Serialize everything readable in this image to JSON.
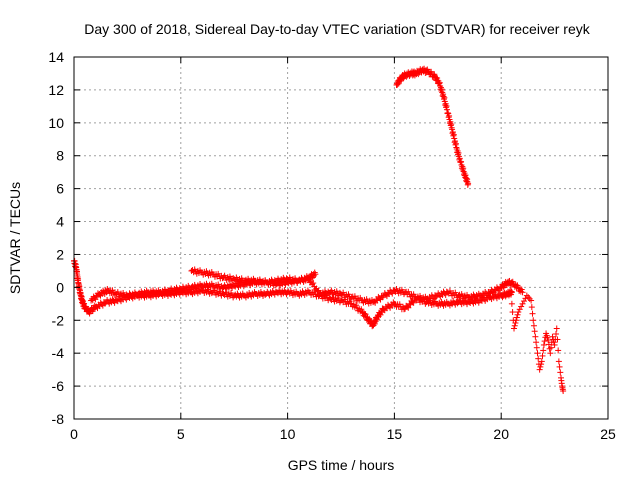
{
  "chart_data": {
    "type": "scatter",
    "title": "Day 300 of 2018, Sidereal Day-to-day VTEC variation (SDTVAR) for receiver reyk",
    "xlabel": "GPS time / hours",
    "ylabel": "SDTVAR / TECUs",
    "xlim": [
      0,
      25
    ],
    "ylim": [
      -8,
      14
    ],
    "xticks": [
      0,
      5,
      10,
      15,
      20,
      25
    ],
    "xtick_labels": [
      "0",
      "5",
      "10",
      "15",
      "20",
      "25"
    ],
    "yticks": [
      -8,
      -6,
      -4,
      -2,
      0,
      2,
      4,
      6,
      8,
      10,
      12,
      14
    ],
    "ytick_labels": [
      "-8",
      "-6",
      "-4",
      "-2",
      "0",
      "2",
      "4",
      "6",
      "8",
      "10",
      "12",
      "14"
    ],
    "grid": true,
    "marker": "+",
    "color": "#ff0000",
    "series": [
      {
        "name": "lower-band",
        "x": [
          0.0,
          0.1,
          0.2,
          0.3,
          0.4,
          0.5,
          0.7,
          1.0,
          1.5,
          2.0,
          2.5,
          3.0,
          3.5,
          4.0,
          4.5,
          5.0,
          5.5,
          6.0,
          6.5,
          7.0,
          7.5,
          8.0,
          8.5,
          9.0,
          9.5,
          10.0,
          10.5,
          11.0,
          11.5,
          12.0,
          12.5,
          13.0,
          13.5,
          13.8,
          14.0,
          14.2,
          14.5,
          15.0,
          15.5,
          16.0,
          16.5,
          17.0,
          17.5,
          18.0,
          18.5,
          19.0,
          19.5,
          20.0,
          20.3,
          20.5
        ],
        "y": [
          1.6,
          1.2,
          0.3,
          -0.4,
          -0.9,
          -1.2,
          -1.5,
          -1.2,
          -0.9,
          -0.8,
          -0.6,
          -0.5,
          -0.5,
          -0.4,
          -0.4,
          -0.3,
          -0.3,
          -0.2,
          -0.3,
          -0.4,
          -0.5,
          -0.5,
          -0.4,
          -0.4,
          -0.3,
          -0.3,
          -0.4,
          -0.3,
          -0.5,
          -0.7,
          -0.8,
          -1.0,
          -1.5,
          -2.0,
          -2.3,
          -1.8,
          -1.3,
          -1.0,
          -1.3,
          -0.7,
          -0.9,
          -1.0,
          -1.0,
          -0.9,
          -0.9,
          -0.8,
          -0.6,
          -0.5,
          -0.4,
          -0.3
        ]
      },
      {
        "name": "middle-band",
        "x": [
          0.8,
          1.2,
          1.6,
          2.0,
          2.5,
          3.0,
          3.5,
          4.0,
          4.5,
          5.0,
          5.5,
          6.0,
          6.5,
          7.0,
          7.5,
          8.0,
          8.5,
          9.0,
          9.5,
          10.0,
          10.5,
          11.0,
          11.5,
          12.0,
          12.5,
          13.0,
          13.5,
          14.0,
          14.5,
          15.0,
          15.5,
          16.0,
          16.5,
          17.0,
          17.5,
          18.0,
          18.5,
          19.0,
          19.5,
          20.0,
          20.3,
          20.6,
          21.0
        ],
        "y": [
          -0.8,
          -0.4,
          -0.2,
          -0.4,
          -0.5,
          -0.4,
          -0.3,
          -0.3,
          -0.2,
          -0.1,
          0.0,
          0.1,
          0.1,
          0.0,
          0.1,
          0.2,
          0.3,
          0.3,
          0.4,
          0.5,
          0.4,
          0.5,
          -0.4,
          -0.3,
          -0.4,
          -0.6,
          -0.8,
          -0.9,
          -0.5,
          -0.2,
          -0.3,
          -0.6,
          -0.7,
          -0.5,
          -0.3,
          -0.5,
          -0.6,
          -0.5,
          -0.3,
          0.0,
          0.3,
          0.2,
          -0.3
        ]
      },
      {
        "name": "upper-band",
        "x": [
          5.5,
          6.0,
          6.5,
          7.0,
          7.5,
          8.0,
          8.5,
          9.0,
          9.5,
          10.0,
          10.5,
          11.0,
          11.3
        ],
        "y": [
          1.0,
          0.9,
          0.8,
          0.6,
          0.5,
          0.4,
          0.4,
          0.3,
          0.2,
          0.3,
          0.4,
          0.6,
          0.8
        ]
      },
      {
        "name": "high-arc",
        "x": [
          15.1,
          15.3,
          15.5,
          15.8,
          16.0,
          16.3,
          16.6,
          16.9,
          17.1,
          17.3,
          17.5,
          17.7,
          17.9,
          18.1,
          18.3,
          18.45
        ],
        "y": [
          12.3,
          12.7,
          12.9,
          13.0,
          13.0,
          13.2,
          13.1,
          12.8,
          12.4,
          11.6,
          10.6,
          9.6,
          8.5,
          7.6,
          6.8,
          6.3
        ]
      },
      {
        "name": "tail-scatter",
        "x": [
          20.5,
          20.6,
          20.7,
          20.8,
          21.0,
          21.2,
          21.4,
          21.5,
          21.6,
          21.7,
          21.8,
          21.9,
          22.0,
          22.1,
          22.2,
          22.3,
          22.4,
          22.5,
          22.6,
          22.7,
          22.8,
          22.85,
          22.9
        ],
        "y": [
          -1.0,
          -2.5,
          -2.0,
          -1.5,
          -1.0,
          -0.5,
          -0.8,
          -2.0,
          -3.0,
          -4.0,
          -5.0,
          -4.5,
          -3.5,
          -2.8,
          -3.2,
          -4.0,
          -3.0,
          -3.5,
          -2.5,
          -4.5,
          -5.5,
          -6.0,
          -6.3
        ]
      }
    ]
  }
}
